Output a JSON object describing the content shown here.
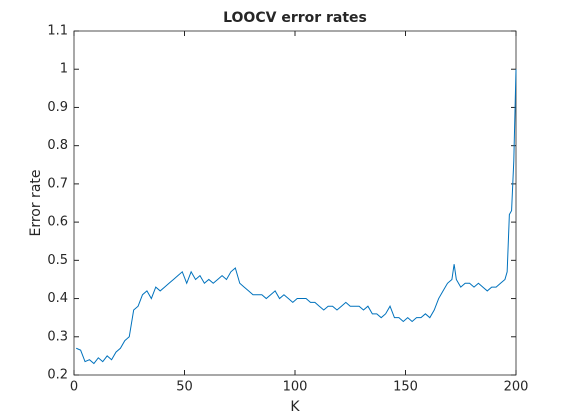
{
  "chart_data": {
    "type": "line",
    "title": "LOOCV error rates",
    "xlabel": "K",
    "ylabel": "Error rate",
    "x": [
      1,
      3,
      5,
      7,
      9,
      11,
      13,
      15,
      17,
      19,
      21,
      23,
      25,
      27,
      29,
      31,
      33,
      35,
      37,
      39,
      41,
      43,
      45,
      47,
      49,
      51,
      53,
      55,
      57,
      59,
      61,
      63,
      65,
      67,
      69,
      71,
      73,
      75,
      77,
      79,
      81,
      83,
      85,
      87,
      89,
      91,
      93,
      95,
      97,
      99,
      101,
      103,
      105,
      107,
      109,
      111,
      113,
      115,
      117,
      119,
      121,
      123,
      125,
      127,
      129,
      131,
      133,
      135,
      137,
      139,
      141,
      143,
      145,
      147,
      149,
      151,
      153,
      155,
      157,
      159,
      161,
      163,
      165,
      167,
      169,
      171,
      172,
      173,
      175,
      177,
      179,
      181,
      183,
      185,
      187,
      189,
      191,
      193,
      195,
      196,
      197,
      198,
      199,
      200
    ],
    "series": [
      {
        "name": "LOOCV error",
        "color": "#0072bd",
        "values": [
          0.27,
          0.265,
          0.235,
          0.24,
          0.23,
          0.245,
          0.235,
          0.25,
          0.24,
          0.26,
          0.27,
          0.29,
          0.3,
          0.37,
          0.38,
          0.41,
          0.42,
          0.4,
          0.43,
          0.42,
          0.43,
          0.44,
          0.45,
          0.46,
          0.47,
          0.44,
          0.47,
          0.45,
          0.46,
          0.44,
          0.45,
          0.44,
          0.45,
          0.46,
          0.45,
          0.47,
          0.48,
          0.44,
          0.43,
          0.42,
          0.41,
          0.41,
          0.41,
          0.4,
          0.41,
          0.42,
          0.4,
          0.41,
          0.4,
          0.39,
          0.4,
          0.4,
          0.4,
          0.39,
          0.39,
          0.38,
          0.37,
          0.38,
          0.38,
          0.37,
          0.38,
          0.39,
          0.38,
          0.38,
          0.38,
          0.37,
          0.38,
          0.36,
          0.36,
          0.35,
          0.36,
          0.38,
          0.35,
          0.35,
          0.34,
          0.35,
          0.34,
          0.35,
          0.35,
          0.36,
          0.35,
          0.37,
          0.4,
          0.42,
          0.44,
          0.45,
          0.49,
          0.45,
          0.43,
          0.44,
          0.44,
          0.43,
          0.44,
          0.43,
          0.42,
          0.43,
          0.43,
          0.44,
          0.45,
          0.47,
          0.62,
          0.63,
          0.76,
          1.0
        ]
      }
    ],
    "xlim": [
      0,
      200
    ],
    "xticks": [
      0,
      50,
      100,
      150,
      200
    ],
    "ylim": [
      0.2,
      1.1
    ],
    "yticks": [
      0.2,
      0.3,
      0.4,
      0.5,
      0.6,
      0.7,
      0.8,
      0.9,
      1,
      1.1
    ]
  }
}
